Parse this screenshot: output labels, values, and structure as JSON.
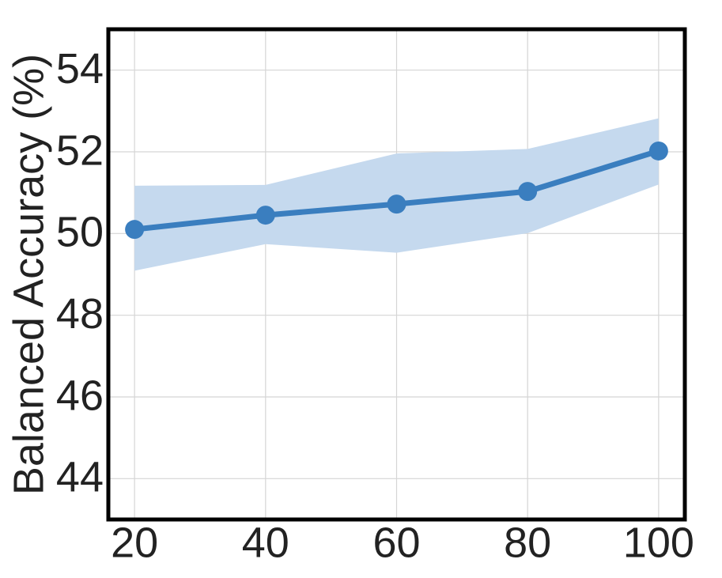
{
  "chart_data": {
    "type": "line",
    "y_label": "Balanced Accuracy (%)",
    "x": [
      20,
      40,
      60,
      80,
      100
    ],
    "series": [
      {
        "color": "#3a7ebf",
        "band_color": "#c5d9ee",
        "values": [
          50.1,
          50.45,
          50.72,
          51.03,
          52.02
        ],
        "upper": [
          51.17,
          51.19,
          51.96,
          52.07,
          52.82
        ],
        "lower": [
          49.09,
          49.74,
          49.53,
          50.01,
          51.2
        ]
      }
    ],
    "xlim": [
      16,
      104
    ],
    "ylim": [
      43,
      55
    ],
    "xticks": [
      20,
      40,
      60,
      80,
      100
    ],
    "yticks": [
      44,
      46,
      48,
      50,
      52,
      54
    ],
    "grid": true
  }
}
